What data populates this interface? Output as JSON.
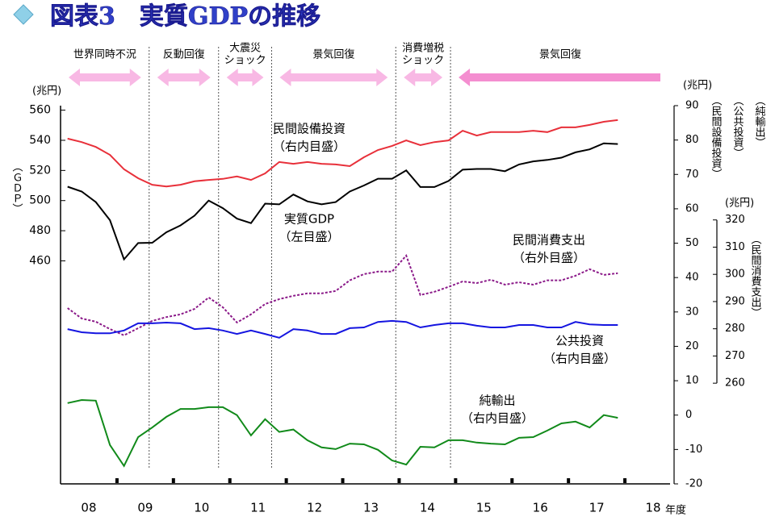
{
  "chart_data": {
    "type": "line",
    "title": "図表3　実質GDPの推移",
    "x_unit": "年度",
    "xlim": [
      2008,
      2018.8
    ],
    "xticks": [
      {
        "value": 2008.5,
        "label": "08"
      },
      {
        "value": 2009.5,
        "label": "09"
      },
      {
        "value": 2010.5,
        "label": "10"
      },
      {
        "value": 2011.5,
        "label": "11"
      },
      {
        "value": 2012.5,
        "label": "12"
      },
      {
        "value": 2013.5,
        "label": "13"
      },
      {
        "value": 2014.5,
        "label": "14"
      },
      {
        "value": 2015.5,
        "label": "15"
      },
      {
        "value": 2016.5,
        "label": "16"
      },
      {
        "value": 2017.5,
        "label": "17"
      },
      {
        "value": 2018.5,
        "label": "18"
      }
    ],
    "minor_xticks": [
      2009,
      2010,
      2011,
      2012,
      2013,
      2014,
      2015,
      2016,
      2017,
      2018
    ],
    "x": [
      2008.125,
      2008.375,
      2008.625,
      2008.875,
      2009.125,
      2009.375,
      2009.625,
      2009.875,
      2010.125,
      2010.375,
      2010.625,
      2010.875,
      2011.125,
      2011.375,
      2011.625,
      2011.875,
      2012.125,
      2012.375,
      2012.625,
      2012.875,
      2013.125,
      2013.375,
      2013.625,
      2013.875,
      2014.125,
      2014.375,
      2014.625,
      2014.875,
      2015.125,
      2015.375,
      2015.625,
      2015.875,
      2016.125,
      2016.375,
      2016.625,
      2016.875,
      2017.125,
      2017.375,
      2017.625,
      2017.875
    ],
    "y_unit": "(兆円)",
    "y_title": "（ＧＤＰ）",
    "ylim": [
      312,
      563
    ],
    "yticks": [
      460,
      480,
      500,
      520,
      540,
      560
    ],
    "y2_unit": "(兆円)",
    "y2_titles": [
      "（民間設備投資）",
      "（公共投資）",
      "（純輸出）"
    ],
    "y2lim": [
      -20,
      90
    ],
    "y2ticks": [
      -20,
      -10,
      0,
      10,
      20,
      30,
      40,
      50,
      60,
      70,
      80,
      90
    ],
    "y3_unit": "(兆円)",
    "y3_title": "（民間消費支出）",
    "y3lim": [
      223,
      362
    ],
    "y3ticks": [
      260,
      270,
      280,
      290,
      300,
      310,
      320
    ],
    "periods": [
      {
        "label": [
          "世界同時不況"
        ],
        "start": 2008,
        "end": 2009.57,
        "arrow": "both"
      },
      {
        "label": [
          "反動回復"
        ],
        "start": 2009.57,
        "end": 2010.8,
        "arrow": "both"
      },
      {
        "label": [
          "大震災",
          "ショック"
        ],
        "start": 2010.8,
        "end": 2011.74,
        "arrow": "both"
      },
      {
        "label": [
          "景気回復"
        ],
        "start": 2011.74,
        "end": 2013.94,
        "arrow": "both"
      },
      {
        "label": [
          "消費増税",
          "ショック"
        ],
        "start": 2013.94,
        "end": 2014.91,
        "arrow": "both"
      },
      {
        "label": [
          "景気回復"
        ],
        "start": 2014.91,
        "end": 2018.8,
        "arrow": "left"
      }
    ],
    "series": [
      {
        "name": "民間設備投資",
        "scale_note": "（右内目盛）",
        "axis": "y2",
        "color": "#e8303a",
        "dash": false,
        "values": [
          80.4,
          79.4,
          78,
          75.7,
          71.5,
          68.9,
          67,
          66.5,
          67,
          68,
          68.4,
          68.7,
          69.4,
          68.4,
          70.3,
          73.6,
          73.1,
          73.6,
          73.1,
          72.9,
          72.4,
          75,
          77.1,
          78.3,
          79.9,
          78.5,
          79.4,
          79.9,
          82.7,
          81.3,
          82.3,
          82.3,
          82.3,
          82.7,
          82.3,
          83.7,
          83.7,
          84.4,
          85.3,
          85.8
        ]
      },
      {
        "name": "実質GDP",
        "scale_note": "（左目盛）",
        "axis": "y",
        "color": "#000000",
        "dash": false,
        "values": [
          509.2,
          506,
          499,
          487,
          461,
          471.8,
          472,
          479,
          483.5,
          490,
          500,
          495,
          488,
          485,
          498,
          497.5,
          504,
          499.5,
          497.5,
          499,
          506,
          510,
          514.5,
          514.5,
          520,
          509,
          509,
          513,
          520.5,
          521,
          521,
          519.5,
          524,
          526,
          527,
          528.5,
          532,
          534,
          538,
          537.5
        ]
      },
      {
        "name": "民間消費支出",
        "scale_note": "（右外目盛）",
        "axis": "y3",
        "color": "#8b1a89",
        "dash": true,
        "values": [
          287.6,
          283.8,
          282.6,
          279.9,
          277.6,
          280.2,
          282.9,
          284.3,
          285.3,
          287.3,
          291.5,
          287.9,
          282.3,
          285.3,
          289.1,
          290.9,
          292.1,
          293,
          293,
          293.9,
          297.8,
          300.1,
          301,
          301,
          306.9,
          292.4,
          293.6,
          295.4,
          297.4,
          296.8,
          298,
          296.2,
          297.1,
          296.2,
          297.8,
          297.8,
          299.5,
          301.9,
          299.8,
          300.4
        ]
      },
      {
        "name": "公共投資",
        "scale_note": "（右内目盛）",
        "axis": "y2",
        "color": "#1515e0",
        "dash": false,
        "values": [
          25,
          24.1,
          23.8,
          23.8,
          24.6,
          26.7,
          26.7,
          26.9,
          26.7,
          25,
          25.3,
          24.6,
          23.6,
          24.6,
          23.6,
          22.5,
          25,
          24.6,
          23.6,
          23.6,
          25.3,
          25.5,
          27.1,
          27.4,
          27.1,
          25.5,
          26.2,
          26.7,
          26.7,
          26,
          25.5,
          25.5,
          26.2,
          26.2,
          25.5,
          25.5,
          27.1,
          26.4,
          26.2,
          26.2
        ]
      },
      {
        "name": "純輸出",
        "scale_note": "（右内目盛）",
        "axis": "y2",
        "color": "#118a1a",
        "dash": false,
        "values": [
          3.5,
          4.4,
          4.2,
          -8.7,
          -14.8,
          -6.4,
          -3.6,
          -0.5,
          1.8,
          1.8,
          2.3,
          2.3,
          0,
          -5.9,
          -1.2,
          -4.9,
          -4.2,
          -7.3,
          -9.4,
          -9.9,
          -8.3,
          -8.5,
          -10.1,
          -13.2,
          -14.4,
          -9.2,
          -9.4,
          -7.3,
          -7.3,
          -8,
          -8.3,
          -8.5,
          -6.6,
          -6.4,
          -4.5,
          -2.4,
          -1.9,
          -3.6,
          0,
          -0.8
        ]
      }
    ]
  }
}
